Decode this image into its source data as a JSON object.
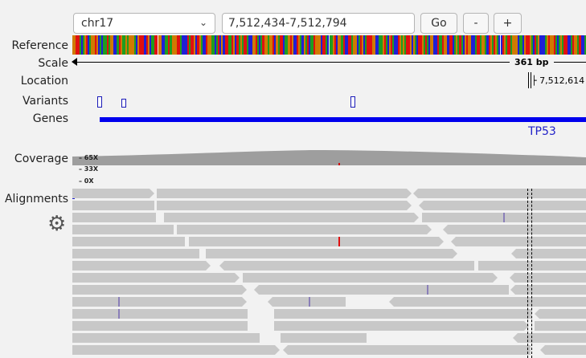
{
  "toolbar": {
    "chromosome": "chr17",
    "chevron_icon": "chevron-down-icon",
    "locus": "7,512,434-7,512,794",
    "go_label": "Go",
    "zoom_out_label": "-",
    "zoom_in_label": "+"
  },
  "track_labels": {
    "reference": "Reference",
    "scale": "Scale",
    "location": "Location",
    "variants": "Variants",
    "genes": "Genes",
    "coverage": "Coverage",
    "alignments": "Alignments"
  },
  "scale": {
    "text": "361 bp"
  },
  "location": {
    "text": "7,512,614"
  },
  "gene": {
    "name": "TP53",
    "color": "#0000ee"
  },
  "coverage_labels": {
    "high": "65X",
    "mid": "33X",
    "low": "0X"
  },
  "colors": {
    "base_A": "#1f9d1f",
    "base_C": "#1f1fd6",
    "base_G": "#d07a00",
    "base_T": "#e01010",
    "read": "#c8c8c8",
    "coverage": "#9e9e9e",
    "background": "#f2f2f2"
  },
  "reference_sequence": "GGTTACAGTCAGGTGCACAATAGGCCATGAAGAGGGACGTTTCTGCAATTGGCCAATAGGGTTACCCTATTGCTGACCTGGAACATCGCTTAATGCTAGATTACCGGTACATGGAGGTCGATTCAAGTGCCTGACGATCAATGGGCTTACAAGTCGGATCCTTAGGCATGCATTTGGCCAAGTACGTACCTGAGATTGCGACTTGATACGGCCTAATGGCTTCAGATACGTGGCCATTAGGACTGATGACCTGATTAGGGCAACGTTGACTAGCCCAGTGGTACAGATTCCATGGATCCA",
  "settings_icon": "gear-icon"
}
